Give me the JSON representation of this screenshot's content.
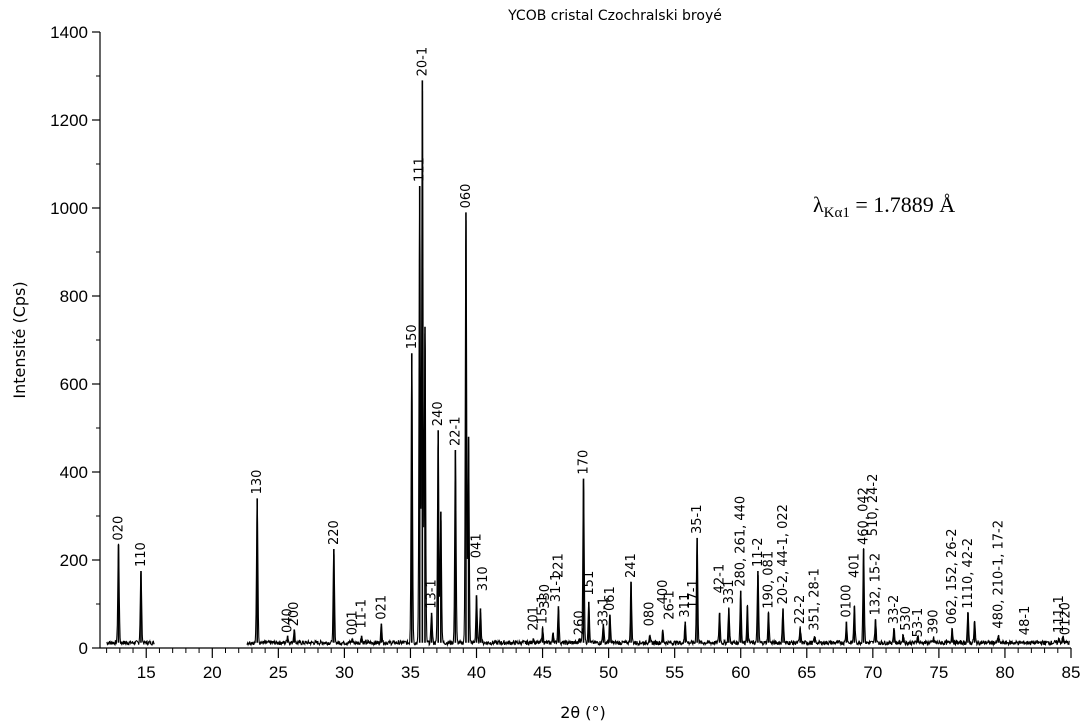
{
  "chart_data": {
    "type": "line",
    "title": "YCOB cristal Czochralski broyé",
    "xlabel": "2θ (°)",
    "ylabel": "Intensité (Cps)",
    "annotation": "λKα1 = 1.7889 Å",
    "xlim": [
      11.5,
      85
    ],
    "ylim": [
      0,
      1400
    ],
    "xticks": [
      15,
      20,
      25,
      30,
      35,
      40,
      45,
      50,
      55,
      60,
      65,
      70,
      75,
      80,
      85
    ],
    "yticks": [
      0,
      200,
      400,
      600,
      800,
      1000,
      1200,
      1400
    ],
    "grid": false,
    "baseline": 12,
    "gap": [
      15.6,
      22.6
    ],
    "peaks": [
      {
        "x": 12.9,
        "y": 235
      },
      {
        "x": 14.6,
        "y": 175
      },
      {
        "x": 23.4,
        "y": 340
      },
      {
        "x": 25.7,
        "y": 28
      },
      {
        "x": 26.2,
        "y": 42
      },
      {
        "x": 29.2,
        "y": 225
      },
      {
        "x": 30.6,
        "y": 20
      },
      {
        "x": 31.3,
        "y": 28
      },
      {
        "x": 32.8,
        "y": 55
      },
      {
        "x": 35.1,
        "y": 670
      },
      {
        "x": 35.7,
        "y": 1050
      },
      {
        "x": 35.9,
        "y": 1290
      },
      {
        "x": 36.1,
        "y": 730
      },
      {
        "x": 36.6,
        "y": 80
      },
      {
        "x": 37.1,
        "y": 495
      },
      {
        "x": 37.3,
        "y": 310
      },
      {
        "x": 38.4,
        "y": 450
      },
      {
        "x": 39.2,
        "y": 990
      },
      {
        "x": 39.4,
        "y": 480
      },
      {
        "x": 40.0,
        "y": 120
      },
      {
        "x": 40.3,
        "y": 90
      },
      {
        "x": 44.3,
        "y": 22
      },
      {
        "x": 45.0,
        "y": 45
      },
      {
        "x": 45.8,
        "y": 35
      },
      {
        "x": 46.2,
        "y": 95
      },
      {
        "x": 47.8,
        "y": 22
      },
      {
        "x": 48.1,
        "y": 385
      },
      {
        "x": 48.5,
        "y": 105
      },
      {
        "x": 49.6,
        "y": 55
      },
      {
        "x": 50.1,
        "y": 75
      },
      {
        "x": 51.7,
        "y": 150
      },
      {
        "x": 53.1,
        "y": 28
      },
      {
        "x": 54.1,
        "y": 40
      },
      {
        "x": 55.8,
        "y": 60
      },
      {
        "x": 56.7,
        "y": 250
      },
      {
        "x": 58.4,
        "y": 80
      },
      {
        "x": 59.1,
        "y": 90
      },
      {
        "x": 60.0,
        "y": 130
      },
      {
        "x": 60.5,
        "y": 95
      },
      {
        "x": 61.3,
        "y": 175
      },
      {
        "x": 62.1,
        "y": 80
      },
      {
        "x": 63.2,
        "y": 90
      },
      {
        "x": 64.5,
        "y": 45
      },
      {
        "x": 65.6,
        "y": 25
      },
      {
        "x": 68.0,
        "y": 60
      },
      {
        "x": 68.6,
        "y": 95
      },
      {
        "x": 69.3,
        "y": 225
      },
      {
        "x": 70.2,
        "y": 65
      },
      {
        "x": 71.6,
        "y": 45
      },
      {
        "x": 72.3,
        "y": 30
      },
      {
        "x": 73.4,
        "y": 28
      },
      {
        "x": 74.6,
        "y": 22
      },
      {
        "x": 76.0,
        "y": 45
      },
      {
        "x": 77.2,
        "y": 80
      },
      {
        "x": 77.7,
        "y": 60
      },
      {
        "x": 79.5,
        "y": 28
      },
      {
        "x": 84.1,
        "y": 22
      },
      {
        "x": 84.4,
        "y": 26
      }
    ],
    "peak_labels": [
      {
        "text": "020",
        "x": 12.9,
        "y": 235
      },
      {
        "text": "110",
        "x": 14.6,
        "y": 175
      },
      {
        "text": "130",
        "x": 23.4,
        "y": 340
      },
      {
        "text": "040",
        "x": 25.7,
        "y": 25
      },
      {
        "text": "200",
        "x": 26.2,
        "y": 40
      },
      {
        "text": "220",
        "x": 29.2,
        "y": 225
      },
      {
        "text": "001",
        "x": 30.6,
        "y": 20
      },
      {
        "text": "11-1",
        "x": 31.3,
        "y": 35
      },
      {
        "text": "021",
        "x": 32.8,
        "y": 55
      },
      {
        "text": "150",
        "x": 35.1,
        "y": 670
      },
      {
        "text": "111",
        "x": 35.7,
        "y": 1050
      },
      {
        "text": "20-1",
        "x": 35.9,
        "y": 1290
      },
      {
        "text": "13-1",
        "x": 36.6,
        "y": 80
      },
      {
        "text": "240",
        "x": 37.1,
        "y": 495
      },
      {
        "text": "22-1",
        "x": 38.4,
        "y": 450
      },
      {
        "text": "060",
        "x": 39.2,
        "y": 990
      },
      {
        "text": "041",
        "x": 40.0,
        "y": 195
      },
      {
        "text": "310",
        "x": 40.5,
        "y": 120
      },
      {
        "text": "201",
        "x": 44.3,
        "y": 30
      },
      {
        "text": "330",
        "x": 45.2,
        "y": 80
      },
      {
        "text": "15-1",
        "x": 45.0,
        "y": 45
      },
      {
        "text": "221",
        "x": 46.2,
        "y": 150
      },
      {
        "text": "31-1",
        "x": 46.0,
        "y": 95
      },
      {
        "text": "260",
        "x": 47.8,
        "y": 20
      },
      {
        "text": "170",
        "x": 48.1,
        "y": 385
      },
      {
        "text": "151",
        "x": 48.5,
        "y": 110
      },
      {
        "text": "33-1",
        "x": 49.6,
        "y": 40
      },
      {
        "text": "061",
        "x": 50.1,
        "y": 75
      },
      {
        "text": "241",
        "x": 51.7,
        "y": 150
      },
      {
        "text": "080",
        "x": 53.1,
        "y": 40
      },
      {
        "text": "400",
        "x": 54.1,
        "y": 90
      },
      {
        "text": "26-1",
        "x": 54.6,
        "y": 55
      },
      {
        "text": "311",
        "x": 55.8,
        "y": 60
      },
      {
        "text": "17-1",
        "x": 56.4,
        "y": 80
      },
      {
        "text": "35-1",
        "x": 56.7,
        "y": 250
      },
      {
        "text": "42-1",
        "x": 58.4,
        "y": 115
      },
      {
        "text": "331",
        "x": 59.1,
        "y": 90
      },
      {
        "text": "280, 261, 440",
        "x": 60.0,
        "y": 130
      },
      {
        "text": "11-2",
        "x": 61.3,
        "y": 175
      },
      {
        "text": "190, 081",
        "x": 62.1,
        "y": 80
      },
      {
        "text": "20-2, 44-1, 022",
        "x": 63.2,
        "y": 90
      },
      {
        "text": "22-2",
        "x": 64.5,
        "y": 45
      },
      {
        "text": "351, 28-1",
        "x": 65.6,
        "y": 30
      },
      {
        "text": "0100",
        "x": 68.0,
        "y": 60
      },
      {
        "text": "401",
        "x": 68.6,
        "y": 150
      },
      {
        "text": "460, 042",
        "x": 69.3,
        "y": 225
      },
      {
        "text": "510, 24-2",
        "x": 70.0,
        "y": 245
      },
      {
        "text": "132, 15-2",
        "x": 70.2,
        "y": 65
      },
      {
        "text": "33-2",
        "x": 71.6,
        "y": 45
      },
      {
        "text": "530",
        "x": 72.5,
        "y": 30
      },
      {
        "text": "53-1",
        "x": 73.4,
        "y": 15
      },
      {
        "text": "390",
        "x": 74.6,
        "y": 22
      },
      {
        "text": "062, 152, 26-2",
        "x": 76.0,
        "y": 45
      },
      {
        "text": "1110, 42-2",
        "x": 77.2,
        "y": 80
      },
      {
        "text": "480, 210-1, 17-2",
        "x": 79.5,
        "y": 35
      },
      {
        "text": "48-1",
        "x": 81.5,
        "y": 20
      },
      {
        "text": "111-1",
        "x": 84.1,
        "y": 25
      },
      {
        "text": "0120",
        "x": 84.6,
        "y": 20
      }
    ]
  }
}
